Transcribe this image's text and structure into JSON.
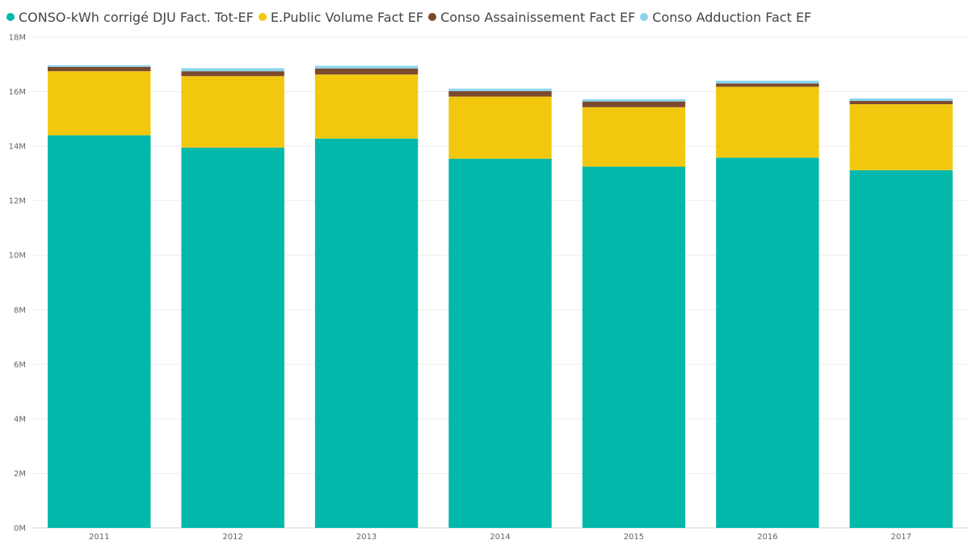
{
  "chart_data": {
    "type": "bar",
    "stacked": true,
    "categories": [
      "2011",
      "2012",
      "2013",
      "2014",
      "2015",
      "2016",
      "2017"
    ],
    "series": [
      {
        "name": "CONSO-kWh corrigé DJU Fact. Tot-EF",
        "color": "#01B8AA",
        "values": [
          14400000,
          13950000,
          14280000,
          13540000,
          13250000,
          13580000,
          13120000
        ]
      },
      {
        "name": "E.Public Volume Fact EF",
        "color": "#F2C80F",
        "values": [
          2350000,
          2620000,
          2350000,
          2280000,
          2180000,
          2600000,
          2420000
        ]
      },
      {
        "name": "Conso Assainissement Fact EF",
        "color": "#7C4A2E",
        "values": [
          160000,
          180000,
          220000,
          200000,
          210000,
          120000,
          120000
        ]
      },
      {
        "name": "Conso Adduction Fact EF",
        "color": "#8AD4EB",
        "values": [
          60000,
          110000,
          100000,
          90000,
          80000,
          100000,
          90000
        ]
      }
    ],
    "y_ticks": [
      "0M",
      "2M",
      "4M",
      "6M",
      "8M",
      "10M",
      "12M",
      "14M",
      "16M",
      "18M"
    ],
    "ylim": [
      0,
      18000000
    ],
    "grid": true,
    "legend_position": "top-left"
  }
}
